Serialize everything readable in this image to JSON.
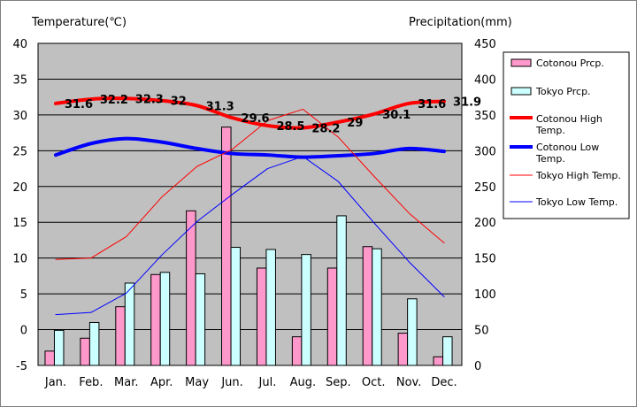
{
  "chart_data": {
    "type": "bar-line",
    "left_axis": {
      "title": "Temperature(℃)",
      "min": -5,
      "max": 40,
      "step": 5
    },
    "right_axis": {
      "title": "Precipitation(mm)",
      "min": 0,
      "max": 450,
      "step": 50
    },
    "categories": [
      "Jan.",
      "Feb.",
      "Mar.",
      "Apr.",
      "May",
      "Jun.",
      "Jul.",
      "Aug.",
      "Sep.",
      "Oct.",
      "Nov.",
      "Dec."
    ],
    "grid": "horizontal",
    "legend_position": "right",
    "bar_series": [
      {
        "name": "Cotonou Prcp.",
        "color": "#ff99cc",
        "values": [
          20,
          38,
          82,
          127,
          216,
          333,
          136,
          40,
          136,
          166,
          45,
          12
        ]
      },
      {
        "name": "Tokyo Prcp.",
        "color": "#ccffff",
        "values": [
          49,
          60,
          115,
          130,
          128,
          165,
          162,
          155,
          209,
          163,
          93,
          40
        ]
      }
    ],
    "line_series": [
      {
        "name": "Cotonou High Temp.",
        "color": "#ff0000",
        "width": 4,
        "values": [
          31.6,
          32.2,
          32.3,
          32,
          31.3,
          29.6,
          28.5,
          28.2,
          29,
          30.1,
          31.6,
          31.9
        ],
        "labels": [
          "31.6",
          "32.2",
          "32.3",
          "32",
          "31.3",
          "29.6",
          "28.5",
          "28.2",
          "29",
          "30.1",
          "31.6",
          "31.9"
        ]
      },
      {
        "name": "Cotonou Low Temp.",
        "color": "#0000ff",
        "width": 4,
        "values": [
          24.4,
          26,
          26.7,
          26.2,
          25.3,
          24.6,
          24.4,
          24.1,
          24.3,
          24.6,
          25.3,
          24.9
        ]
      },
      {
        "name": "Tokyo High Temp.",
        "color": "#ff0000",
        "width": 1,
        "values": [
          9.8,
          10,
          13,
          18.5,
          22.8,
          25.2,
          29.2,
          30.8,
          26.9,
          21.5,
          16.3,
          12.1
        ]
      },
      {
        "name": "Tokyo Low Temp.",
        "color": "#0000ff",
        "width": 1,
        "values": [
          2.1,
          2.4,
          5.1,
          10.4,
          15.1,
          18.9,
          22.5,
          24.2,
          20.7,
          15,
          9.5,
          4.6
        ]
      }
    ]
  }
}
